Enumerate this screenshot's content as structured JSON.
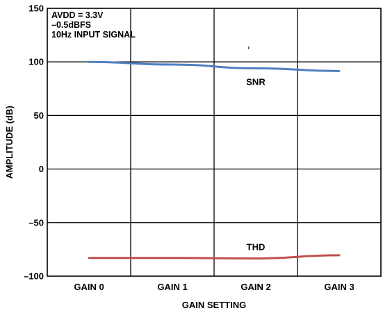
{
  "chart_data": {
    "type": "line",
    "categories": [
      "GAIN 0",
      "GAIN 1",
      "GAIN 2",
      "GAIN 3"
    ],
    "series": [
      {
        "name": "SNR",
        "values": [
          100,
          97.5,
          94,
          91.5
        ],
        "color": "#4f7fc1"
      },
      {
        "name": "THD",
        "values": [
          -83,
          -83,
          -83.5,
          -80.5
        ],
        "color": "#c0504d"
      }
    ],
    "xlabel": "GAIN SETTING",
    "ylabel": "AMPLITUDE (dB)",
    "ylim": [
      -100,
      150
    ],
    "yticks": [
      "150",
      "100",
      "50",
      "0",
      "–50",
      "–100"
    ],
    "annotations": [
      "AVDD = 3.3V",
      "–0.5dBFS",
      "10Hz INPUT SIGNAL"
    ],
    "grid": true
  }
}
